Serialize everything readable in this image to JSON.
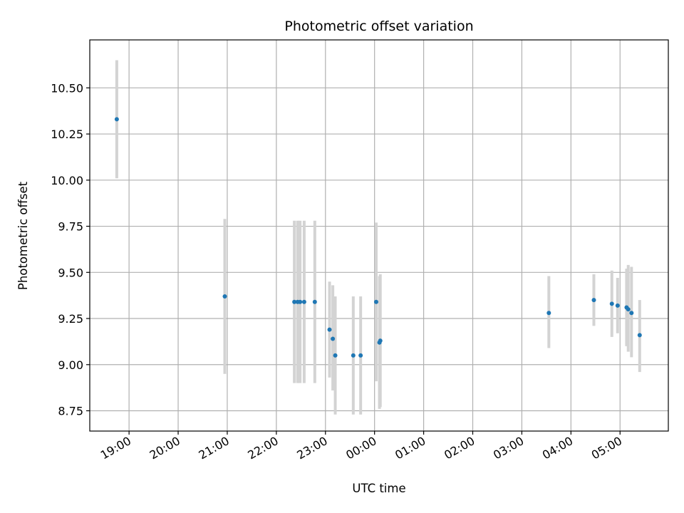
{
  "chart_data": {
    "type": "scatter",
    "title": "Photometric offset variation",
    "xlabel": "UTC time",
    "ylabel": "Photometric offset",
    "grid": true,
    "x_unit": "clock time (UTC)",
    "x_ticks": [
      "19:00",
      "20:00",
      "21:00",
      "22:00",
      "23:00",
      "00:00",
      "01:00",
      "02:00",
      "03:00",
      "04:00",
      "05:00"
    ],
    "y_ticks": [
      "8.75",
      "9.00",
      "9.25",
      "9.50",
      "9.75",
      "10.00",
      "10.25",
      "10.50"
    ],
    "xlim": [
      "18:12",
      "05:59"
    ],
    "ylim": [
      8.64,
      10.76
    ],
    "point_color": "#1f77b4",
    "errorbar_color": "#d3d3d3",
    "series": [
      {
        "points": [
          {
            "time": "18:45",
            "y": 10.33,
            "err_low": 10.01,
            "err_high": 10.65
          },
          {
            "time": "20:57",
            "y": 9.37,
            "err_low": 8.95,
            "err_high": 9.79
          },
          {
            "time": "22:22",
            "y": 9.34,
            "err_low": 8.9,
            "err_high": 9.78
          },
          {
            "time": "22:26",
            "y": 9.34,
            "err_low": 8.9,
            "err_high": 9.78
          },
          {
            "time": "22:29",
            "y": 9.34,
            "err_low": 8.9,
            "err_high": 9.78
          },
          {
            "time": "22:34",
            "y": 9.34,
            "err_low": 8.9,
            "err_high": 9.78
          },
          {
            "time": "22:47",
            "y": 9.34,
            "err_low": 8.9,
            "err_high": 9.78
          },
          {
            "time": "23:05",
            "y": 9.19,
            "err_low": 8.93,
            "err_high": 9.45
          },
          {
            "time": "23:09",
            "y": 9.14,
            "err_low": 8.86,
            "err_high": 9.43
          },
          {
            "time": "23:12",
            "y": 9.05,
            "err_low": 8.73,
            "err_high": 9.37
          },
          {
            "time": "23:34",
            "y": 9.05,
            "err_low": 8.73,
            "err_high": 9.37
          },
          {
            "time": "23:43",
            "y": 9.05,
            "err_low": 8.73,
            "err_high": 9.37
          },
          {
            "time": "00:02",
            "y": 9.34,
            "err_low": 8.91,
            "err_high": 9.77
          },
          {
            "time": "00:06",
            "y": 9.12,
            "err_low": 8.76,
            "err_high": 9.48
          },
          {
            "time": "00:07",
            "y": 9.13,
            "err_low": 8.77,
            "err_high": 9.49
          },
          {
            "time": "03:33",
            "y": 9.28,
            "err_low": 9.09,
            "err_high": 9.48
          },
          {
            "time": "04:28",
            "y": 9.35,
            "err_low": 9.21,
            "err_high": 9.49
          },
          {
            "time": "04:50",
            "y": 9.33,
            "err_low": 9.15,
            "err_high": 9.51
          },
          {
            "time": "04:57",
            "y": 9.32,
            "err_low": 9.17,
            "err_high": 9.47
          },
          {
            "time": "05:08",
            "y": 9.31,
            "err_low": 9.1,
            "err_high": 9.52
          },
          {
            "time": "05:10",
            "y": 9.3,
            "err_low": 9.07,
            "err_high": 9.54
          },
          {
            "time": "05:14",
            "y": 9.28,
            "err_low": 9.04,
            "err_high": 9.53
          },
          {
            "time": "05:24",
            "y": 9.16,
            "err_low": 8.96,
            "err_high": 9.35
          }
        ]
      }
    ]
  }
}
